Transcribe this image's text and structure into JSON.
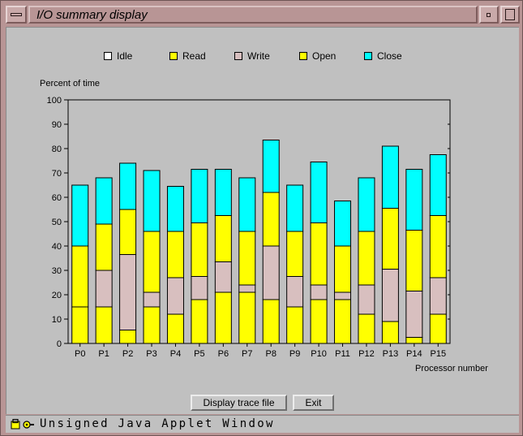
{
  "window": {
    "title": "I/O summary display"
  },
  "colors": {
    "idle": "#ffffff",
    "read": "#ffff00",
    "write": "#d8bfbf",
    "open": "#ffff00",
    "close": "#00ffff",
    "plot_bg": "#c0c0c0"
  },
  "legend": [
    {
      "label": "Idle",
      "color": "#ffffff"
    },
    {
      "label": "Read",
      "color": "#ffff00"
    },
    {
      "label": "Write",
      "color": "#d8bfbf"
    },
    {
      "label": "Open",
      "color": "#ffff00"
    },
    {
      "label": "Close",
      "color": "#00ffff"
    }
  ],
  "chart_data": {
    "type": "bar",
    "stacked": true,
    "ylabel": "Percent of time",
    "xlabel": "Processor number",
    "ylim": [
      0,
      100
    ],
    "yticks": [
      0,
      10,
      20,
      30,
      40,
      50,
      60,
      70,
      80,
      90,
      100
    ],
    "categories": [
      "P0",
      "P1",
      "P2",
      "P3",
      "P4",
      "P5",
      "P6",
      "P7",
      "P8",
      "P9",
      "P10",
      "P11",
      "P12",
      "P13",
      "P14",
      "P15"
    ],
    "series": [
      {
        "name": "Read",
        "color": "#ffff00",
        "values": [
          15,
          15,
          5.5,
          15,
          12,
          18,
          21,
          21,
          18,
          15,
          18,
          18,
          12,
          9,
          2.5,
          12
        ]
      },
      {
        "name": "Write",
        "color": "#d8bfbf",
        "values": [
          0,
          15,
          31,
          6,
          15,
          9.5,
          12.5,
          3,
          22,
          12.5,
          6,
          3,
          12,
          21.5,
          19,
          15
        ]
      },
      {
        "name": "Open",
        "color": "#ffff00",
        "values": [
          25,
          19,
          18.5,
          25,
          19,
          22,
          19,
          22,
          22,
          18.5,
          25.5,
          19,
          22,
          25,
          25,
          25.5
        ]
      },
      {
        "name": "Close",
        "color": "#00ffff",
        "values": [
          25,
          19,
          19,
          25,
          18.5,
          22,
          19,
          22,
          21.5,
          19,
          25,
          18.5,
          22,
          25.5,
          25,
          25
        ]
      }
    ]
  },
  "buttons": {
    "display_trace": "Display trace file",
    "exit": "Exit"
  },
  "status": {
    "text": "Unsigned Java Applet Window",
    "icon": "key-lock-icon"
  }
}
